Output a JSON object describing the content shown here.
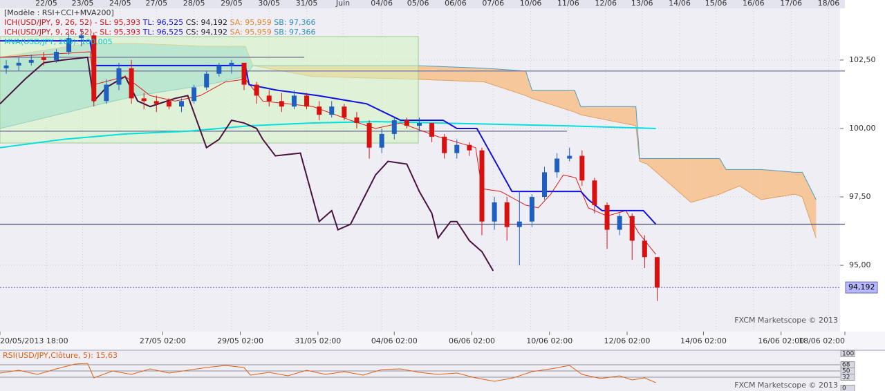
{
  "chart_data": {
    "type": "candlestick",
    "header": "[Modèle : RSI+CCI+MVA200]",
    "legend": {
      "ich": "ICH(USD/JPY, 9, 26, 52) -",
      "sl": "SL: 95,393",
      "tl": "TL: 96,525",
      "cs": "CS: 94,192",
      "sa": "SA: 95,959",
      "sb": "SB: 97,366",
      "mva": "MVA(USD/JPY, 200): 100,005"
    },
    "watermark": "FXCM Marketscope © 2013",
    "xlim": [
      0,
      67.5
    ],
    "ylim": [
      92.58,
      104.39
    ],
    "yticks": [
      {
        "value": 102.5,
        "label": "102,50"
      },
      {
        "value": 100,
        "label": "100,00"
      },
      {
        "value": 97.5,
        "label": "97,50"
      },
      {
        "value": 95,
        "label": "95,00"
      }
    ],
    "grid": true,
    "top_ticks": [
      {
        "value": 3.7,
        "label": "22/05"
      },
      {
        "value": 6.6,
        "label": "23/05"
      },
      {
        "value": 9.6,
        "label": "24/05"
      },
      {
        "value": 12.5,
        "label": "27/05"
      },
      {
        "value": 15.5,
        "label": "28/05"
      },
      {
        "value": 18.5,
        "label": "29/05"
      },
      {
        "value": 21.5,
        "label": "30/05"
      },
      {
        "value": 24.5,
        "label": "31/05"
      },
      {
        "value": 27.4,
        "label": "Juin"
      },
      {
        "value": 30.5,
        "label": "04/06"
      },
      {
        "value": 33.4,
        "label": "05/06"
      },
      {
        "value": 36.4,
        "label": "06/06"
      },
      {
        "value": 39.4,
        "label": "07/06"
      },
      {
        "value": 42.4,
        "label": "10/06"
      },
      {
        "value": 45.4,
        "label": "11/06"
      },
      {
        "value": 48.4,
        "label": "12/06"
      },
      {
        "value": 51.3,
        "label": "13/06"
      },
      {
        "value": 54.3,
        "label": "14/06"
      },
      {
        "value": 57.2,
        "label": "15/06"
      },
      {
        "value": 60.2,
        "label": "16/06"
      },
      {
        "value": 63.2,
        "label": "17/06"
      },
      {
        "value": 66.2,
        "label": "18/06"
      }
    ],
    "xticks": [
      {
        "value": 0,
        "label": "20/05/2013 18:00"
      },
      {
        "value": 13,
        "label": "27/05 02:00"
      },
      {
        "value": 19.2,
        "label": "29/05 02:00"
      },
      {
        "value": 25.4,
        "label": "31/05 02:00"
      },
      {
        "value": 31.5,
        "label": "04/06 02:00"
      },
      {
        "value": 37.7,
        "label": "06/06 02:00"
      },
      {
        "value": 43.9,
        "label": "10/06 02:00"
      },
      {
        "value": 50.1,
        "label": "12/06 02:00"
      },
      {
        "value": 56.2,
        "label": "14/06 02:00"
      },
      {
        "value": 62.4,
        "label": "16/06 02:00"
      },
      {
        "value": 67.5,
        "label": "18/06 02:00"
      }
    ],
    "up_color": "#1f5fc0",
    "down_color": "#d81010",
    "candle_x": [
      0.5,
      1.5,
      2.5,
      3.5,
      4.5,
      5.5,
      6.5,
      7.5,
      8.5,
      9.5,
      10.5,
      11.5,
      12.5,
      13.5,
      14.5,
      15.5,
      16.5,
      17.5,
      18.5,
      19.5,
      20.5,
      21.5,
      22.5,
      23.5,
      24.5,
      25.5,
      26.5,
      27.5,
      28.5,
      29.5,
      30.5,
      31.5,
      32.5,
      33.5,
      34.5,
      35.5,
      36.5,
      37.5,
      38.5,
      39.5,
      40.5,
      41.5,
      42.5,
      43.5,
      44.5,
      45.5,
      46.5,
      47.5,
      48.5,
      49.5,
      50.5,
      51.5,
      52.5
    ],
    "ohlc": [
      [
        102.2,
        102.5,
        102.0,
        102.3
      ],
      [
        102.3,
        102.6,
        102.1,
        102.4
      ],
      [
        102.4,
        102.7,
        102.3,
        102.5
      ],
      [
        102.6,
        102.8,
        102.3,
        102.5
      ],
      [
        102.5,
        102.9,
        102.4,
        102.8
      ],
      [
        102.8,
        103.5,
        102.7,
        103.3
      ],
      [
        103.3,
        103.6,
        103.0,
        103.4
      ],
      [
        103.4,
        103.5,
        100.8,
        101.0
      ],
      [
        101.0,
        101.8,
        100.9,
        101.6
      ],
      [
        101.6,
        102.4,
        101.4,
        102.2
      ],
      [
        102.2,
        102.5,
        100.9,
        101.1
      ],
      [
        101.1,
        101.3,
        100.7,
        101.0
      ],
      [
        101.0,
        101.2,
        100.6,
        100.9
      ],
      [
        101.0,
        101.1,
        100.7,
        100.8
      ],
      [
        100.8,
        101.1,
        100.6,
        101.0
      ],
      [
        101.0,
        101.6,
        100.9,
        101.5
      ],
      [
        101.5,
        102.1,
        101.4,
        102.0
      ],
      [
        102.0,
        102.4,
        101.9,
        102.3
      ],
      [
        102.3,
        102.5,
        102.0,
        102.4
      ],
      [
        102.4,
        102.4,
        101.4,
        101.6
      ],
      [
        101.6,
        101.7,
        100.9,
        101.2
      ],
      [
        101.2,
        101.4,
        100.8,
        101.0
      ],
      [
        101.0,
        101.3,
        100.6,
        100.8
      ],
      [
        100.8,
        101.4,
        100.7,
        101.2
      ],
      [
        101.2,
        101.3,
        100.7,
        100.8
      ],
      [
        100.8,
        101.0,
        100.3,
        100.5
      ],
      [
        100.5,
        101.0,
        100.4,
        100.8
      ],
      [
        100.8,
        100.9,
        100.3,
        100.4
      ],
      [
        100.4,
        100.6,
        100.0,
        100.2
      ],
      [
        100.2,
        100.3,
        98.9,
        99.3
      ],
      [
        99.3,
        100.0,
        99.1,
        99.8
      ],
      [
        99.8,
        100.4,
        99.6,
        100.3
      ],
      [
        100.3,
        100.4,
        100.0,
        100.1
      ],
      [
        100.1,
        100.4,
        99.9,
        100.2
      ],
      [
        100.2,
        100.2,
        99.5,
        99.7
      ],
      [
        99.7,
        99.8,
        98.9,
        99.1
      ],
      [
        99.1,
        99.6,
        98.9,
        99.4
      ],
      [
        99.4,
        99.5,
        99.0,
        99.2
      ],
      [
        99.2,
        99.3,
        96.1,
        96.6
      ],
      [
        96.6,
        97.5,
        96.3,
        97.3
      ],
      [
        97.3,
        97.5,
        95.9,
        96.4
      ],
      [
        96.4,
        97.7,
        95.0,
        96.6
      ],
      [
        96.6,
        97.6,
        96.4,
        97.5
      ],
      [
        97.5,
        98.6,
        97.4,
        98.4
      ],
      [
        98.4,
        99.1,
        98.2,
        98.9
      ],
      [
        98.9,
        99.3,
        98.8,
        99.0
      ],
      [
        99.0,
        99.2,
        97.9,
        98.1
      ],
      [
        98.1,
        98.2,
        96.9,
        97.2
      ],
      [
        97.2,
        97.3,
        95.6,
        96.3
      ],
      [
        96.3,
        96.9,
        96.1,
        96.8
      ],
      [
        96.8,
        96.9,
        95.2,
        95.9
      ],
      [
        95.9,
        96.1,
        94.9,
        95.3
      ],
      [
        95.3,
        95.3,
        93.7,
        94.192
      ]
    ],
    "cloud": {
      "up_color": "#8fd0e0",
      "down_color": "#f6c08a",
      "a_color": "#e0a060",
      "b_color": "#4a9ec0",
      "x": [
        0,
        5.5,
        7.2,
        11.0,
        16.6,
        19.6,
        20.2,
        24.9,
        33.1,
        38.7,
        42.0,
        42.5,
        45.9,
        46.4,
        50.8,
        51.1,
        51.7,
        55.2,
        57.5,
        58.0,
        59.1,
        60.8,
        63.5,
        64.1,
        65.2
      ],
      "span_a": [
        102.6,
        103.0,
        103.1,
        103.1,
        103.0,
        103.0,
        102.3,
        101.9,
        101.8,
        101.7,
        101.2,
        101.1,
        100.6,
        100.5,
        100.1,
        98.8,
        98.7,
        97.3,
        97.6,
        97.7,
        97.9,
        97.4,
        97.6,
        97.5,
        96.0
      ],
      "span_b": [
        100.0,
        100.6,
        100.8,
        101.2,
        101.6,
        101.9,
        102.3,
        102.3,
        102.3,
        102.2,
        102.1,
        101.4,
        101.4,
        100.8,
        100.8,
        98.9,
        98.9,
        98.9,
        98.9,
        98.5,
        98.5,
        98.5,
        98.4,
        98.4,
        97.4
      ]
    },
    "lines": [
      {
        "color": "#00e0e0",
        "width": 2,
        "x": [
          0,
          5,
          10,
          15,
          20,
          25,
          30,
          35,
          40,
          45,
          52.4
        ],
        "values": [
          99.3,
          99.6,
          99.8,
          99.9,
          100.1,
          100.2,
          100.25,
          100.2,
          100.15,
          100.1,
          100.0
        ]
      },
      {
        "color": "#4a1040",
        "width": 2,
        "x": [
          0,
          2,
          3.5,
          5,
          7,
          7.5,
          8.5,
          10,
          11,
          12,
          14,
          15,
          16.5,
          17.5,
          18.5,
          19.5,
          20.5,
          21,
          22,
          24,
          25.5,
          26.5,
          27,
          28,
          29,
          30,
          31,
          32.5,
          33.5,
          34.5,
          35,
          36,
          36.5,
          37.5,
          38.5,
          39.4
        ],
        "values": [
          100.9,
          101.8,
          102.4,
          102.5,
          102.6,
          101.0,
          101.5,
          101.9,
          101.0,
          100.8,
          101.1,
          101.2,
          99.3,
          99.6,
          100.3,
          100.2,
          100.0,
          99.6,
          99.0,
          99.1,
          96.6,
          97.0,
          96.3,
          96.5,
          97.4,
          98.3,
          98.8,
          98.7,
          97.7,
          96.9,
          96.0,
          96.6,
          96.6,
          95.9,
          95.5,
          94.8
        ]
      },
      {
        "color": "#e01818",
        "width": 1,
        "x": [
          0,
          7.2,
          7.5,
          10,
          12,
          14,
          16,
          18,
          19.6,
          21,
          25,
          28,
          30,
          32,
          35,
          38,
          38.5,
          40,
          42,
          43,
          44,
          45,
          46,
          47,
          48.5,
          50,
          51,
          52.4
        ],
        "values": [
          102.6,
          102.8,
          101.6,
          101.9,
          101.2,
          101.0,
          101.2,
          101.7,
          101.8,
          101.0,
          100.8,
          100.3,
          100.0,
          100.2,
          99.7,
          99.3,
          97.8,
          97.7,
          97.2,
          97.1,
          97.6,
          98.3,
          98.2,
          97.1,
          96.8,
          97.0,
          96.2,
          95.4
        ]
      },
      {
        "color": "#1010e0",
        "width": 2,
        "x": [
          0,
          7.2,
          7.5,
          19.6,
          19.9,
          22.1,
          25.4,
          29.3,
          32.0,
          35.4,
          36.5,
          38.1,
          40.9,
          46.4,
          47.0,
          48.1,
          51.4,
          52.4
        ],
        "values": [
          103.2,
          103.2,
          102.3,
          102.3,
          101.6,
          101.4,
          101.2,
          100.9,
          100.3,
          100.3,
          100.0,
          100.0,
          97.7,
          97.7,
          97.4,
          97.0,
          97.0,
          96.5
        ]
      }
    ],
    "hlines": [
      {
        "value": 102.1,
        "x": [
          0,
          67.5
        ],
        "color": "#8080a0"
      },
      {
        "value": 96.5,
        "x": [
          0,
          67.5
        ],
        "color": "#606080"
      },
      {
        "value": 99.9,
        "x": [
          0,
          45.3
        ],
        "color": "#8080a0"
      },
      {
        "value": 102.6,
        "x": [
          0,
          24.3
        ],
        "color": "#8080a0"
      }
    ],
    "last_price": {
      "value": 94.192,
      "label": "94,192"
    },
    "rsi": {
      "label": "RSI(USD/JPY,Clôture, 5): 15,63",
      "color": "#e06010",
      "ylim": [
        0,
        100
      ],
      "yticks": [
        100,
        68,
        50,
        32,
        0
      ],
      "x": [
        0,
        1.5,
        3,
        4.5,
        6,
        7,
        7.5,
        9,
        10.5,
        12,
        13.5,
        15,
        16.5,
        18,
        19.5,
        20,
        21.5,
        23,
        24.5,
        26,
        27.5,
        29,
        30.5,
        32,
        33.5,
        35,
        36.5,
        38,
        39.5,
        41,
        42.5,
        44,
        45.5,
        46.5,
        48,
        49.5,
        50.5,
        51.5,
        52.4
      ],
      "values": [
        44,
        52,
        40,
        56,
        70,
        72,
        30,
        50,
        40,
        56,
        44,
        52,
        60,
        66,
        60,
        38,
        46,
        36,
        52,
        40,
        48,
        38,
        54,
        56,
        46,
        40,
        44,
        30,
        20,
        30,
        48,
        56,
        66,
        40,
        28,
        36,
        24,
        30,
        16
      ]
    }
  }
}
